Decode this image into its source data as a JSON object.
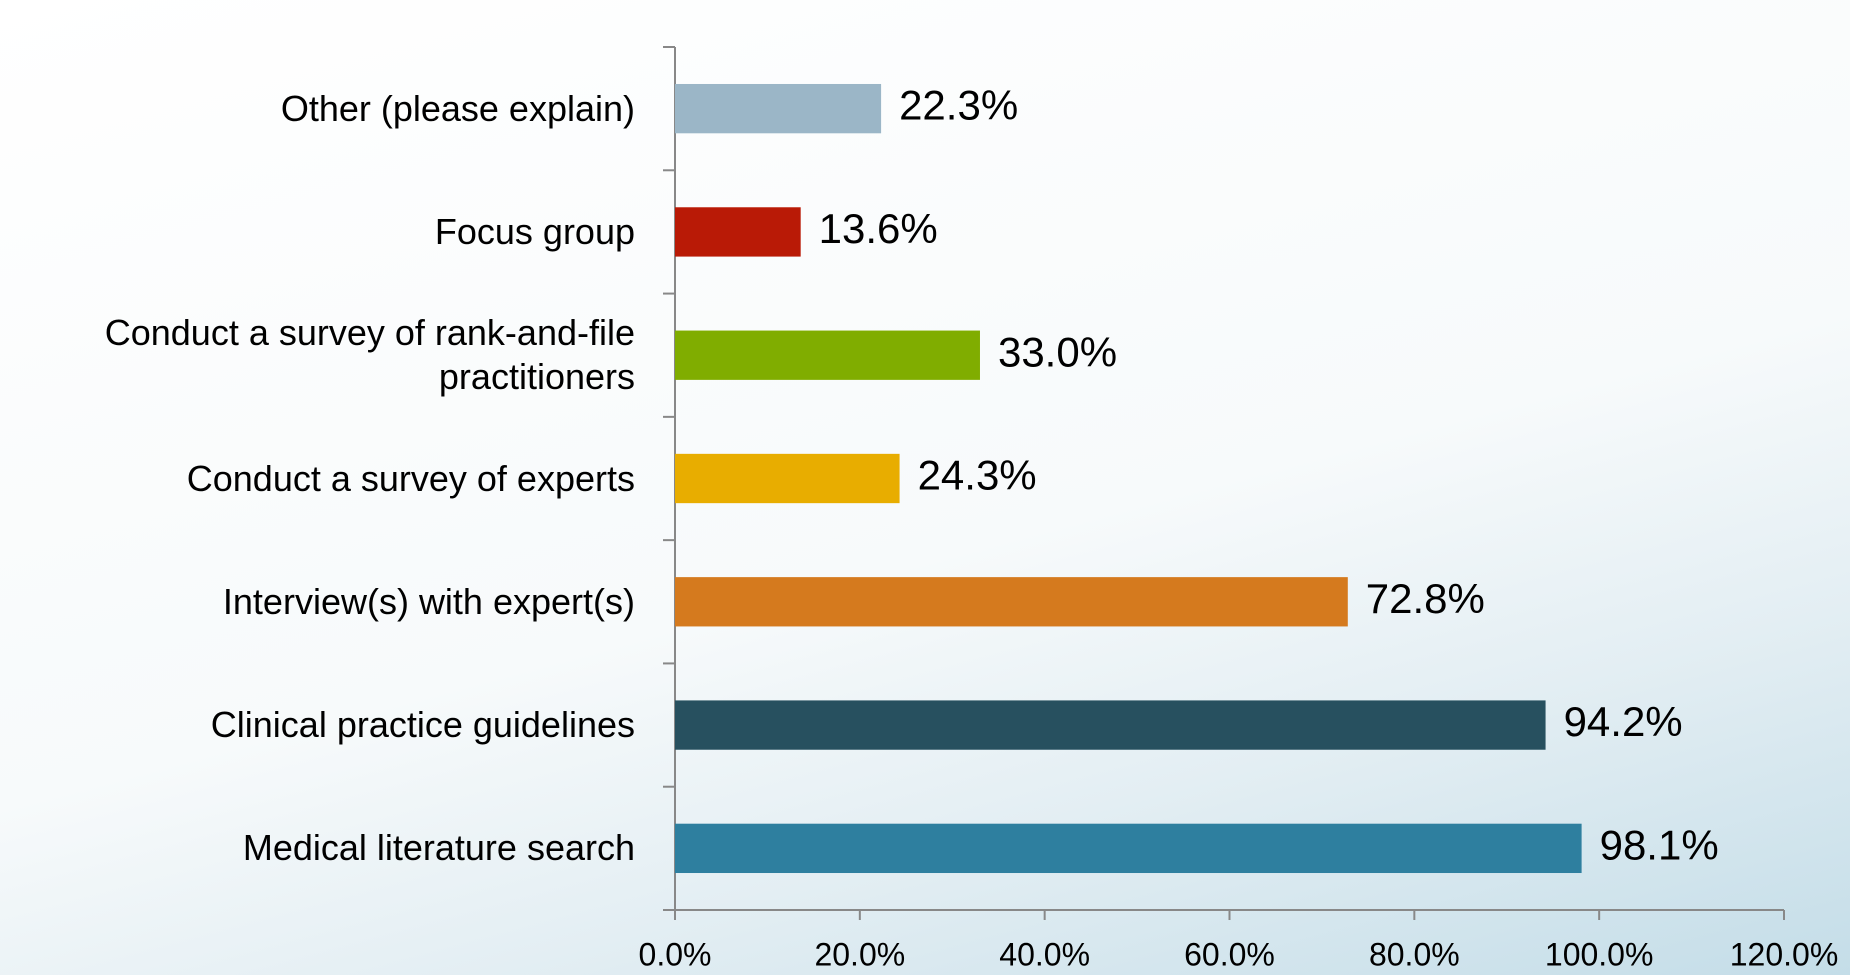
{
  "chart_data": {
    "type": "barh",
    "categories": [
      "Other (please explain)",
      "Focus group",
      "Conduct a survey of rank-and-file practitioners",
      "Conduct a survey of experts",
      "Interview(s) with expert(s)",
      "Clinical practice guidelines",
      "Medical literature search"
    ],
    "values": [
      22.3,
      13.6,
      33.0,
      24.3,
      72.8,
      94.2,
      98.1
    ],
    "value_labels": [
      "22.3%",
      "13.6%",
      "33.0%",
      "24.3%",
      "72.8%",
      "94.2%",
      "98.1%"
    ],
    "colors": [
      "#9bb6c7",
      "#b91a06",
      "#80ad00",
      "#e8ad00",
      "#d57a1e",
      "#27505f",
      "#2e7f9f"
    ],
    "xlim": [
      0,
      120
    ],
    "xticks": [
      {
        "value": 0,
        "label": "0.0%"
      },
      {
        "value": 20,
        "label": "20.0%"
      },
      {
        "value": 40,
        "label": "40.0%"
      },
      {
        "value": 60,
        "label": "60.0%"
      },
      {
        "value": 80,
        "label": "80.0%"
      },
      {
        "value": 100,
        "label": "100.0%"
      },
      {
        "value": 120,
        "label": "120.0%"
      }
    ]
  }
}
